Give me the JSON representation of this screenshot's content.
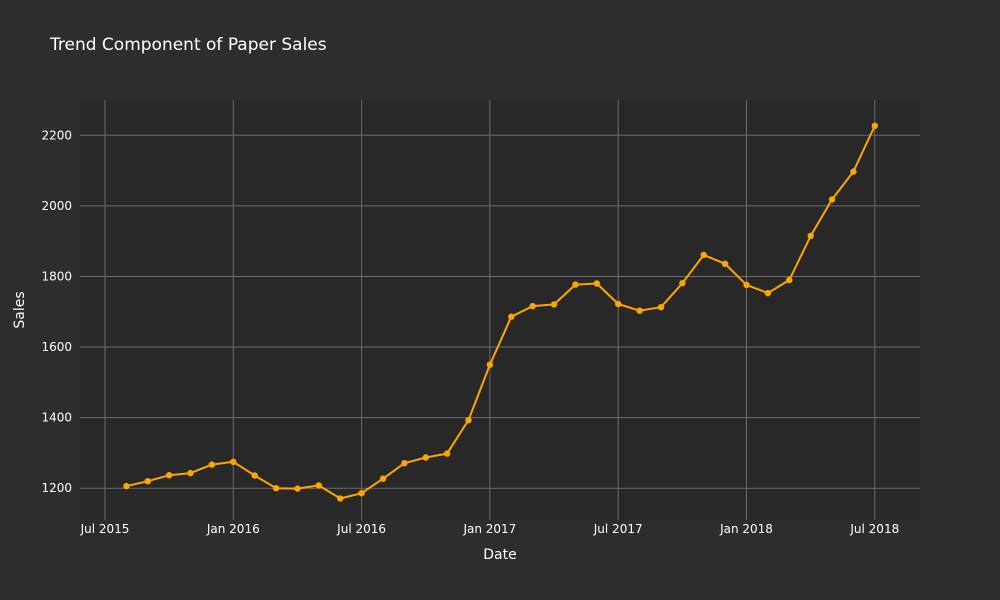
{
  "chart_data": {
    "type": "line",
    "title": "Trend Component of Paper Sales",
    "xlabel": "Date",
    "ylabel": "Sales",
    "x_tick_labels": [
      "Jul 2015",
      "Jan 2016",
      "Jul 2016",
      "Jan 2017",
      "Jul 2017",
      "Jan 2018",
      "Jul 2018"
    ],
    "y_tick_labels": [
      "1200",
      "1400",
      "1600",
      "1800",
      "2000",
      "2200"
    ],
    "ylim": [
      1110,
      2300
    ],
    "grid": true,
    "line_color": "#ffa500",
    "series": [
      {
        "x": [
          "2015-08-01",
          "2015-09-01",
          "2015-10-01",
          "2015-11-01",
          "2015-12-01",
          "2016-01-01",
          "2016-02-01",
          "2016-03-01",
          "2016-04-01",
          "2016-05-01",
          "2016-06-01",
          "2016-07-01",
          "2016-08-01",
          "2016-09-01",
          "2016-10-01",
          "2016-11-01",
          "2016-12-01",
          "2017-01-01",
          "2017-02-01",
          "2017-03-01",
          "2017-04-01",
          "2017-05-01",
          "2017-06-01",
          "2017-07-01",
          "2017-08-01",
          "2017-09-01",
          "2017-10-01",
          "2017-11-01",
          "2017-12-01",
          "2018-01-01",
          "2018-02-01",
          "2018-03-01",
          "2018-04-01",
          "2018-05-01",
          "2018-06-01",
          "2018-07-01"
        ],
        "values": [
          1206,
          1220,
          1237,
          1243,
          1267,
          1275,
          1236,
          1200,
          1199,
          1208,
          1171,
          1186,
          1227,
          1271,
          1287,
          1298,
          1393,
          1550,
          1686,
          1716,
          1721,
          1777,
          1780,
          1722,
          1703,
          1713,
          1781,
          1861,
          1836,
          1776,
          1753,
          1790,
          1915,
          2018,
          2097,
          2227
        ]
      }
    ]
  },
  "colors": {
    "background": "#2d2d2d",
    "plot_background": "#282828",
    "grid": "#6b6b6b"
  }
}
